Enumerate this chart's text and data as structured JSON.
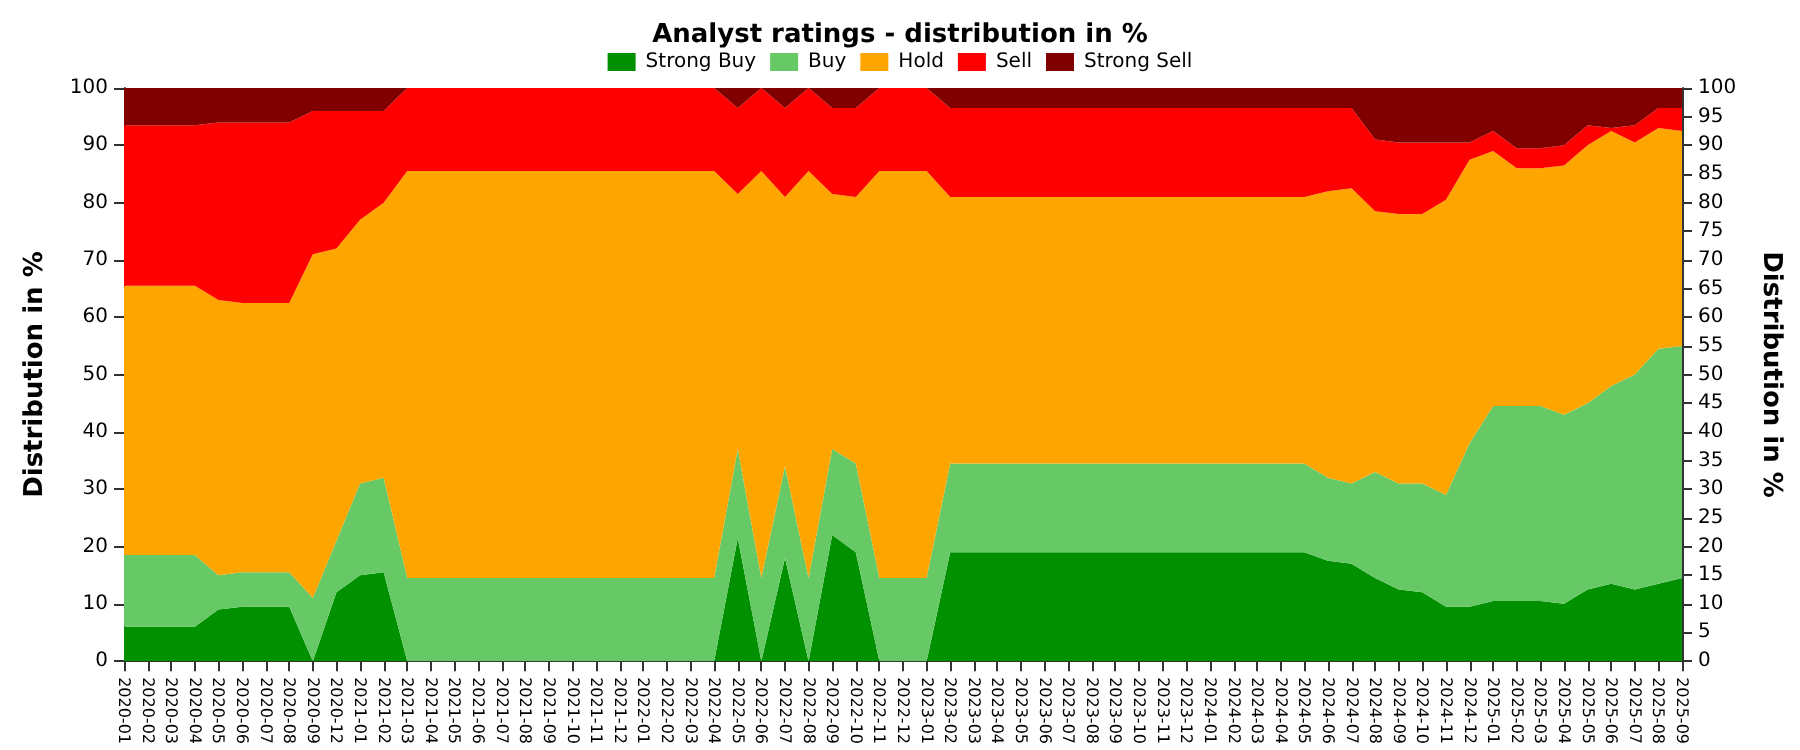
{
  "chart_data": {
    "type": "area",
    "stacked": true,
    "title": "Analyst ratings - distribution in %",
    "ylabel": "Distribution in %",
    "y2label": "Distribution in %",
    "categories": [
      "2020-01",
      "2020-02",
      "2020-03",
      "2020-04",
      "2020-05",
      "2020-06",
      "2020-07",
      "2020-08",
      "2020-09",
      "2020-12",
      "2021-01",
      "2021-02",
      "2021-03",
      "2021-04",
      "2021-05",
      "2021-06",
      "2021-07",
      "2021-08",
      "2021-09",
      "2021-10",
      "2021-11",
      "2021-12",
      "2022-01",
      "2022-02",
      "2022-03",
      "2022-04",
      "2022-05",
      "2022-06",
      "2022-07",
      "2022-08",
      "2022-09",
      "2022-10",
      "2022-11",
      "2022-12",
      "2023-01",
      "2023-02",
      "2023-03",
      "2023-04",
      "2023-05",
      "2023-06",
      "2023-07",
      "2023-08",
      "2023-09",
      "2023-10",
      "2023-11",
      "2023-12",
      "2024-01",
      "2024-02",
      "2024-03",
      "2024-04",
      "2024-05",
      "2024-06",
      "2024-07",
      "2024-08",
      "2024-09",
      "2024-10",
      "2024-11",
      "2024-12",
      "2025-01",
      "2025-02",
      "2025-03",
      "2025-04",
      "2025-05",
      "2025-06",
      "2025-07",
      "2025-08",
      "2025-09"
    ],
    "series": [
      {
        "name": "Strong Buy",
        "color": "#009000",
        "values": [
          6,
          6,
          6,
          6,
          9,
          9.5,
          9.5,
          9.5,
          0,
          12,
          15,
          15.5,
          0,
          0,
          0,
          0,
          0,
          0,
          0,
          0,
          0,
          0,
          0,
          0,
          0,
          0,
          21.5,
          0,
          18,
          0,
          22,
          19,
          0,
          0,
          0,
          19,
          19,
          19,
          19,
          19,
          19,
          19,
          19,
          19,
          19,
          19,
          19,
          19,
          19,
          19,
          19,
          17.5,
          17,
          14.5,
          12.5,
          12,
          9.5,
          9.5,
          10.5,
          10.5,
          10.5,
          10,
          12.5,
          13.5,
          12.5,
          13.5,
          14.5
        ]
      },
      {
        "name": "Buy",
        "color": "#66c966",
        "values": [
          12.5,
          12.5,
          12.5,
          12.5,
          6,
          6,
          6,
          6,
          11,
          9,
          16,
          16.5,
          14.5,
          14.5,
          14.5,
          14.5,
          14.5,
          14.5,
          14.5,
          14.5,
          14.5,
          14.5,
          14.5,
          14.5,
          14.5,
          14.5,
          15.5,
          14.5,
          16,
          14.5,
          15,
          15.5,
          14.5,
          14.5,
          14.5,
          15.5,
          15.5,
          15.5,
          15.5,
          15.5,
          15.5,
          15.5,
          15.5,
          15.5,
          15.5,
          15.5,
          15.5,
          15.5,
          15.5,
          15.5,
          15.5,
          14.5,
          14,
          18.5,
          18.5,
          19,
          19.5,
          28.5,
          34,
          34,
          34,
          33,
          32.5,
          34.5,
          37.5,
          41,
          40.5
        ]
      },
      {
        "name": "Hold",
        "color": "#ffa500",
        "values": [
          47,
          47,
          47,
          47,
          48,
          47,
          47,
          47,
          60,
          51,
          46,
          48,
          71,
          71,
          71,
          71,
          71,
          71,
          71,
          71,
          71,
          71,
          71,
          71,
          71,
          71,
          44.5,
          71,
          47,
          71,
          44.5,
          46.5,
          71,
          71,
          71,
          46.5,
          46.5,
          46.5,
          46.5,
          46.5,
          46.5,
          46.5,
          46.5,
          46.5,
          46.5,
          46.5,
          46.5,
          46.5,
          46.5,
          46.5,
          46.5,
          50,
          51.5,
          45.5,
          47,
          47,
          51.5,
          49.5,
          44.5,
          41.5,
          41.5,
          43.5,
          45,
          44.5,
          40.5,
          38.5,
          37.5
        ]
      },
      {
        "name": "Sell",
        "color": "#ff0000",
        "values": [
          28,
          28,
          28,
          28,
          31,
          31.5,
          31.5,
          31.5,
          25,
          24,
          19,
          16,
          14.5,
          14.5,
          14.5,
          14.5,
          14.5,
          14.5,
          14.5,
          14.5,
          14.5,
          14.5,
          14.5,
          14.5,
          14.5,
          14.5,
          15,
          14.5,
          15.5,
          14.5,
          15,
          15.5,
          14.5,
          14.5,
          14.5,
          15.5,
          15.5,
          15.5,
          15.5,
          15.5,
          15.5,
          15.5,
          15.5,
          15.5,
          15.5,
          15.5,
          15.5,
          15.5,
          15.5,
          15.5,
          15.5,
          14.5,
          14,
          12.5,
          12.5,
          12.5,
          10,
          3,
          3.5,
          3.5,
          3.5,
          3.5,
          3.5,
          0.5,
          3,
          3.5,
          4
        ]
      },
      {
        "name": "Strong Sell",
        "color": "#800000",
        "values": [
          6.5,
          6.5,
          6.5,
          6.5,
          6,
          6,
          6,
          6,
          4,
          4,
          4,
          4,
          0,
          0,
          0,
          0,
          0,
          0,
          0,
          0,
          0,
          0,
          0,
          0,
          0,
          0,
          3.5,
          0,
          3.5,
          0,
          3.5,
          3.5,
          0,
          0,
          0,
          3.5,
          3.5,
          3.5,
          3.5,
          3.5,
          3.5,
          3.5,
          3.5,
          3.5,
          3.5,
          3.5,
          3.5,
          3.5,
          3.5,
          3.5,
          3.5,
          3.5,
          3.5,
          9,
          9.5,
          9.5,
          9.5,
          9.5,
          7.5,
          10.5,
          10.5,
          10,
          6.5,
          7,
          6.5,
          3.5,
          3.5
        ]
      }
    ],
    "ylim": [
      0,
      100
    ],
    "yticks": [
      0,
      10,
      20,
      30,
      40,
      50,
      60,
      70,
      80,
      90,
      100
    ],
    "y2lim": [
      0,
      100
    ],
    "y2ticks": [
      0,
      5,
      10,
      15,
      20,
      25,
      30,
      35,
      40,
      45,
      50,
      55,
      60,
      65,
      70,
      75,
      80,
      85,
      90,
      95,
      100
    ],
    "grid": "y",
    "legend": "top",
    "marker": "none"
  }
}
